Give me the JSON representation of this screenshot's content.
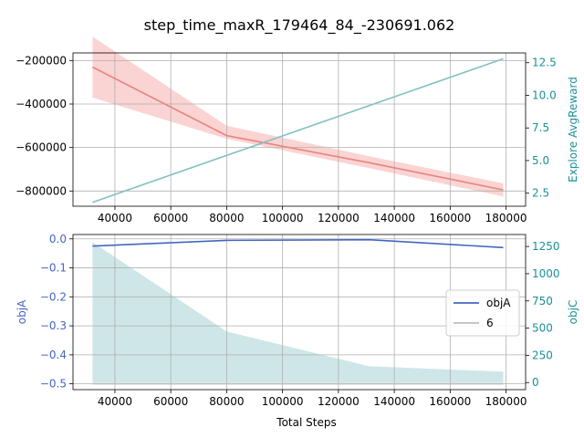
{
  "title": "step_time_maxR_179464_84_-230691.062",
  "colors": {
    "red_line": "#e8837c",
    "red_band": "#f8c6c4",
    "teal_line": "#84c1c4",
    "teal_fill": "#cbe5e6",
    "blue_line": "#4466c4",
    "gray_line": "#bdbdbd",
    "teal_label": "#1b9097",
    "blue_label": "#4466c4",
    "grid": "#b0b0b0"
  },
  "chart_data": [
    {
      "type": "line",
      "panel": "top",
      "xlim": [
        25000,
        187000
      ],
      "x_ticks": [
        40000,
        60000,
        80000,
        100000,
        120000,
        140000,
        160000,
        180000
      ],
      "x_tick_labels": [
        "40000",
        "60000",
        "80000",
        "100000",
        "120000",
        "140000",
        "160000",
        "180000"
      ],
      "grid": true,
      "left_axis": {
        "label": "",
        "ylim": [
          -870000,
          -165000
        ],
        "ticks": [
          -800000,
          -600000,
          -400000,
          -200000
        ],
        "tick_labels": [
          "−800000",
          "−600000",
          "−400000",
          "−200000"
        ]
      },
      "right_axis": {
        "label": "Explore AvgReward",
        "ylim": [
          1.5,
          13.25
        ],
        "ticks": [
          2.5,
          5.0,
          7.5,
          10.0,
          12.5
        ],
        "tick_labels": [
          "2.5",
          "5.0",
          "7.5",
          "10.0",
          "12.5"
        ]
      },
      "series": [
        {
          "axis": "left",
          "x": [
            32000,
            80000,
            131000,
            179000
          ],
          "values": [
            -230000,
            -545000,
            -670000,
            -795000
          ],
          "band_upper": [
            -90000,
            -500000,
            -640000,
            -765000
          ],
          "band_lower": [
            -370000,
            -560000,
            -695000,
            -825000
          ]
        },
        {
          "axis": "right",
          "x": [
            32000,
            179000
          ],
          "values": [
            1.8,
            12.8
          ]
        }
      ]
    },
    {
      "type": "line",
      "panel": "bottom",
      "xlim": [
        25000,
        187000
      ],
      "x_ticks": [
        40000,
        60000,
        80000,
        100000,
        120000,
        140000,
        160000,
        180000
      ],
      "x_tick_labels": [
        "40000",
        "60000",
        "80000",
        "100000",
        "120000",
        "140000",
        "160000",
        "180000"
      ],
      "xlabel": "Total Steps",
      "grid": true,
      "left_axis": {
        "label": "objA",
        "ylim": [
          -0.52,
          0.015
        ],
        "ticks": [
          -0.5,
          -0.4,
          -0.3,
          -0.2,
          -0.1,
          0.0
        ],
        "tick_labels": [
          "−0.5",
          "−0.4",
          "−0.3",
          "−0.2",
          "−0.1",
          "0.0"
        ]
      },
      "right_axis": {
        "label": "objC",
        "ylim": [
          -65,
          1360
        ],
        "ticks": [
          0,
          250,
          500,
          750,
          1000,
          1250
        ],
        "tick_labels": [
          "0",
          "250",
          "500",
          "750",
          "1000",
          "1250"
        ]
      },
      "legend": {
        "position": "center-right",
        "entries": [
          "objA",
          "6"
        ]
      },
      "series": [
        {
          "name": "objA",
          "axis": "left",
          "x": [
            32000,
            80000,
            131000,
            179000
          ],
          "values": [
            -0.025,
            -0.005,
            -0.003,
            -0.03
          ]
        },
        {
          "name": "6",
          "axis": "left",
          "x": [
            32000,
            179000
          ],
          "values": [
            -0.5,
            -0.5
          ]
        },
        {
          "axis": "right",
          "kind": "area",
          "x": [
            32000,
            80000,
            131000,
            179000
          ],
          "values": [
            1290,
            470,
            150,
            100
          ]
        }
      ]
    }
  ]
}
